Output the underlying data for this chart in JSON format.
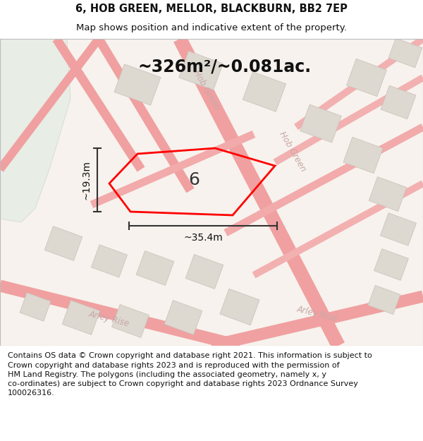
{
  "title": "6, HOB GREEN, MELLOR, BLACKBURN, BB2 7EP",
  "subtitle": "Map shows position and indicative extent of the property.",
  "area_text": "~326m²/~0.081ac.",
  "dim_width": "~35.4m",
  "dim_height": "~19.3m",
  "property_label": "6",
  "footer_text": "Contains OS data © Crown copyright and database right 2021. This information is subject to\nCrown copyright and database rights 2023 and is reproduced with the permission of\nHM Land Registry. The polygons (including the associated geometry, namely x, y\nco-ordinates) are subject to Crown copyright and database rights 2023 Ordnance Survey\n100026316.",
  "map_bg": "#f7f2ed",
  "green_color": "#e8ede6",
  "road_color": "#f0a0a0",
  "road_edge_color": "#e88888",
  "building_fill": "#ddd8d0",
  "building_edge": "#c8c0b8",
  "property_color": "#ff0000",
  "street_label_color": "#c8a8a8",
  "dim_color": "#333333",
  "title_fontsize": 10.5,
  "subtitle_fontsize": 9.5,
  "area_fontsize": 17,
  "label_fontsize": 18,
  "dim_fontsize": 10,
  "footer_fontsize": 8.0,
  "street_fontsize": 8.5
}
